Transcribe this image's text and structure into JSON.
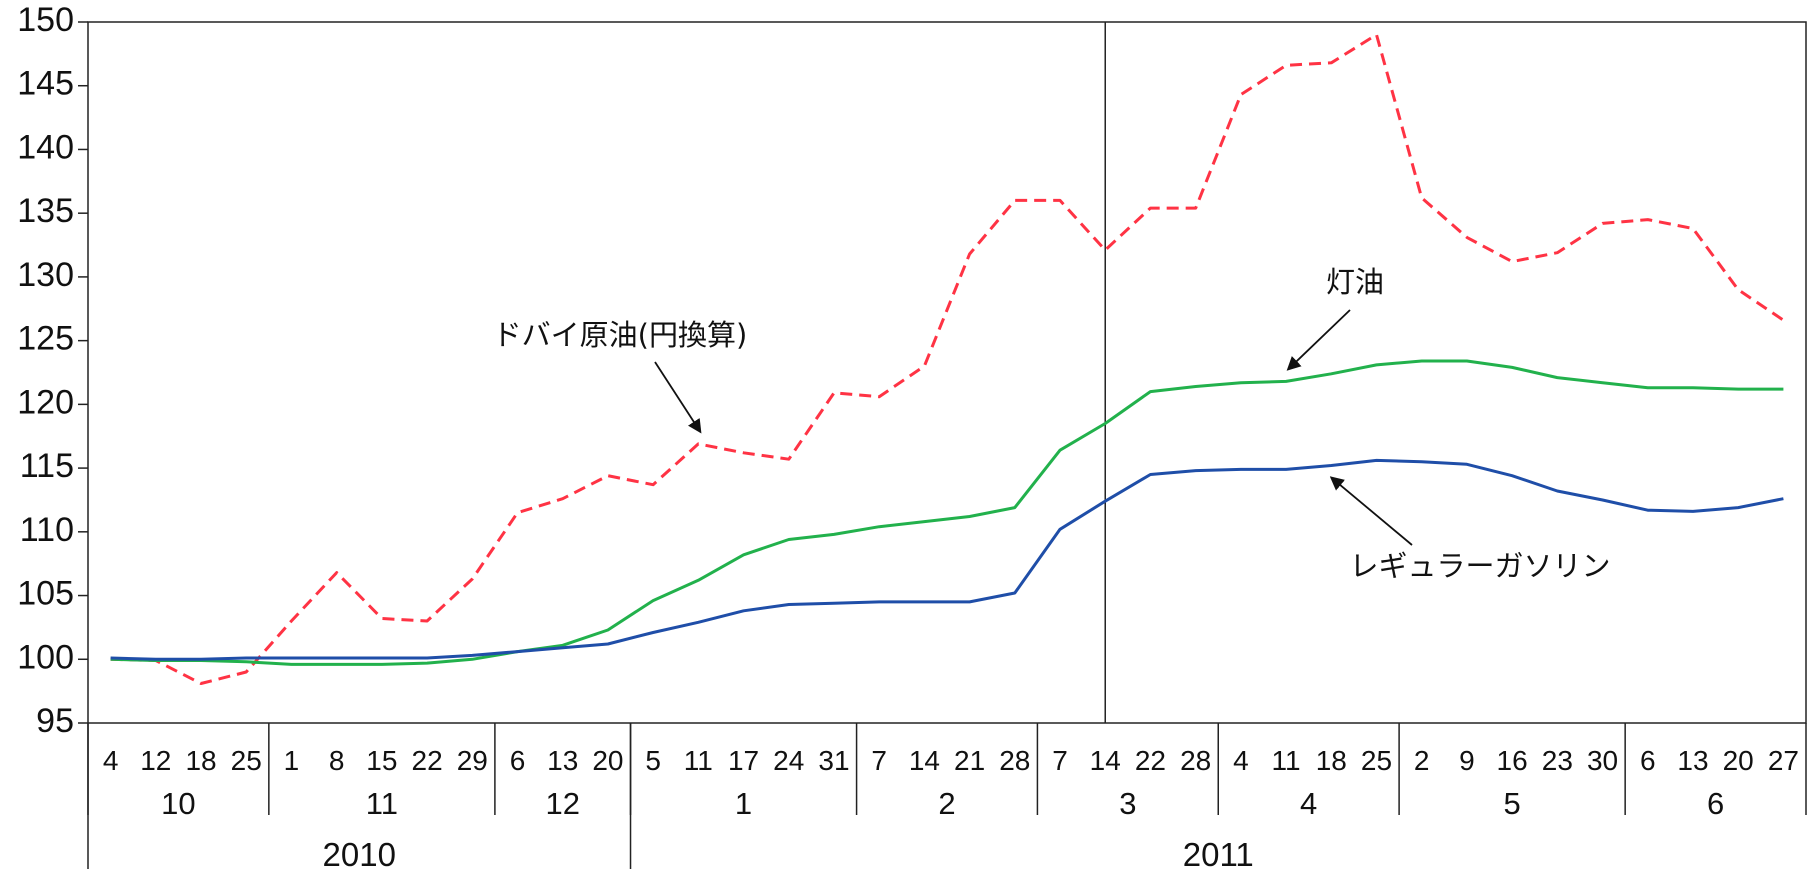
{
  "chart_data": {
    "type": "line",
    "title": "",
    "xlabel": "",
    "ylabel": "",
    "ylim": [
      95,
      150
    ],
    "yticks": [
      95,
      100,
      105,
      110,
      115,
      120,
      125,
      130,
      135,
      140,
      145,
      150
    ],
    "grid": false,
    "x": [
      "2010-10-4",
      "2010-10-12",
      "2010-10-18",
      "2010-10-25",
      "2010-11-1",
      "2010-11-8",
      "2010-11-15",
      "2010-11-22",
      "2010-11-29",
      "2010-12-6",
      "2010-12-13",
      "2010-12-20",
      "2011-1-5",
      "2011-1-11",
      "2011-1-17",
      "2011-1-24",
      "2011-1-31",
      "2011-2-7",
      "2011-2-14",
      "2011-2-21",
      "2011-2-28",
      "2011-3-7",
      "2011-3-14",
      "2011-3-22",
      "2011-3-28",
      "2011-4-4",
      "2011-4-11",
      "2011-4-18",
      "2011-4-25",
      "2011-5-2",
      "2011-5-9",
      "2011-5-16",
      "2011-5-23",
      "2011-5-30",
      "2011-6-6",
      "2011-6-13",
      "2011-6-20",
      "2011-6-27"
    ],
    "week_labels": [
      "4",
      "12",
      "18",
      "25",
      "1",
      "8",
      "15",
      "22",
      "29",
      "6",
      "13",
      "20",
      "5",
      "11",
      "17",
      "24",
      "31",
      "7",
      "14",
      "21",
      "28",
      "7",
      "14",
      "22",
      "28",
      "4",
      "11",
      "18",
      "25",
      "2",
      "9",
      "16",
      "23",
      "30",
      "6",
      "13",
      "20",
      "27"
    ],
    "months": [
      {
        "label": "10",
        "start": 0,
        "count": 4
      },
      {
        "label": "11",
        "start": 4,
        "count": 5
      },
      {
        "label": "12",
        "start": 9,
        "count": 3
      },
      {
        "label": "1",
        "start": 12,
        "count": 5
      },
      {
        "label": "2",
        "start": 17,
        "count": 4
      },
      {
        "label": "3",
        "start": 21,
        "count": 4
      },
      {
        "label": "4",
        "start": 25,
        "count": 4
      },
      {
        "label": "5",
        "start": 29,
        "count": 5
      },
      {
        "label": "6",
        "start": 34,
        "count": 4
      }
    ],
    "years": [
      {
        "label": "2010",
        "start": 0,
        "count": 12
      },
      {
        "label": "2011",
        "start": 12,
        "count": 26
      }
    ],
    "vline_at": "2011-3-14",
    "series": [
      {
        "name": "ドバイ原油(円換算)",
        "color": "#ff3344",
        "dash": "dashed",
        "values": [
          100.0,
          99.9,
          98.1,
          99.0,
          103.0,
          106.8,
          103.2,
          103.0,
          106.3,
          111.5,
          112.6,
          114.4,
          113.7,
          116.9,
          116.2,
          115.7,
          120.9,
          120.6,
          123.0,
          131.8,
          136.0,
          136.0,
          132.1,
          135.4,
          135.4,
          144.3,
          146.6,
          146.8,
          149.0,
          136.2,
          133.1,
          131.2,
          131.9,
          134.2,
          134.5,
          133.8,
          129.0,
          126.6
        ]
      },
      {
        "name": "灯油",
        "color": "#22b14c",
        "dash": "solid",
        "values": [
          100.0,
          99.9,
          99.9,
          99.8,
          99.6,
          99.6,
          99.6,
          99.7,
          100.0,
          100.6,
          101.1,
          102.3,
          104.6,
          106.2,
          108.2,
          109.4,
          109.8,
          110.4,
          110.8,
          111.2,
          111.9,
          116.4,
          118.5,
          121.0,
          121.4,
          121.7,
          121.8,
          122.4,
          123.1,
          123.4,
          123.4,
          122.9,
          122.1,
          121.7,
          121.3,
          121.3,
          121.2,
          121.2
        ]
      },
      {
        "name": "レギュラーガソリン",
        "color": "#1f4ea8",
        "dash": "solid",
        "values": [
          100.1,
          100.0,
          100.0,
          100.1,
          100.1,
          100.1,
          100.1,
          100.1,
          100.3,
          100.6,
          100.9,
          101.2,
          102.1,
          102.9,
          103.8,
          104.3,
          104.4,
          104.5,
          104.5,
          104.5,
          105.2,
          110.2,
          112.4,
          114.5,
          114.8,
          114.9,
          114.9,
          115.2,
          115.6,
          115.5,
          115.3,
          114.4,
          113.2,
          112.5,
          111.7,
          111.6,
          111.9,
          112.6
        ]
      }
    ],
    "annotations": [
      {
        "text": "ドバイ原油(円換算)",
        "series_index": 0,
        "point_index": 13
      },
      {
        "text": "灯油",
        "series_index": 1,
        "point_index": 26
      },
      {
        "text": "レギュラーガソリン",
        "series_index": 2,
        "point_index": 27
      }
    ]
  }
}
